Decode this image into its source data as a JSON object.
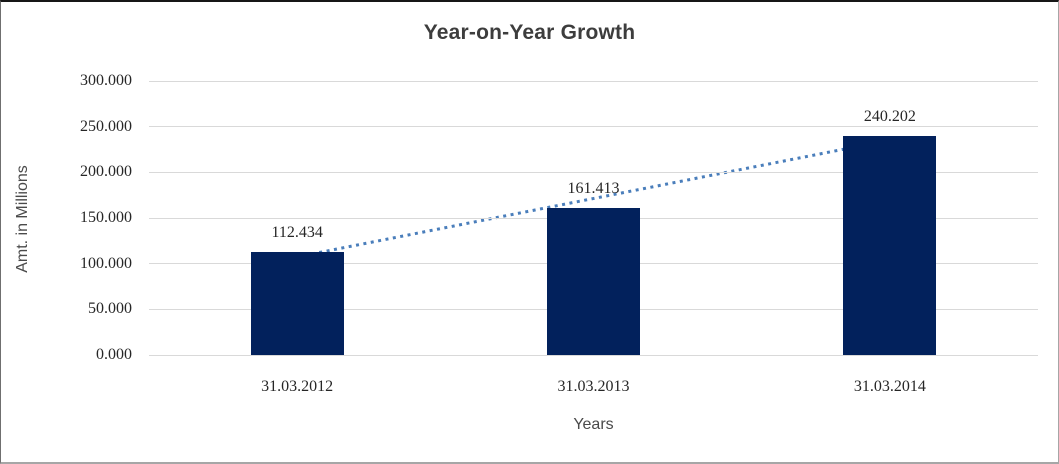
{
  "chart_data": {
    "type": "bar",
    "title": "Year-on-Year Growth",
    "xlabel": "Years",
    "ylabel": "Amt. in Millions",
    "categories": [
      "31.03.2012",
      "31.03.2013",
      "31.03.2014"
    ],
    "values": [
      112.434,
      161.413,
      240.202
    ],
    "data_labels": [
      "112.434",
      "161.413",
      "240.202"
    ],
    "ylim": [
      0,
      300
    ],
    "ytick_step": 50,
    "ytick_labels": [
      "0.000",
      "50.000",
      "100.000",
      "150.000",
      "200.000",
      "250.000",
      "300.000"
    ],
    "grid": "horizontal-on",
    "legend": "none",
    "bar_color": "#02215c",
    "gridline_color": "#d9d9d9",
    "trendline": {
      "type": "linear",
      "style": "dotted",
      "color": "#4a7ebb"
    }
  }
}
